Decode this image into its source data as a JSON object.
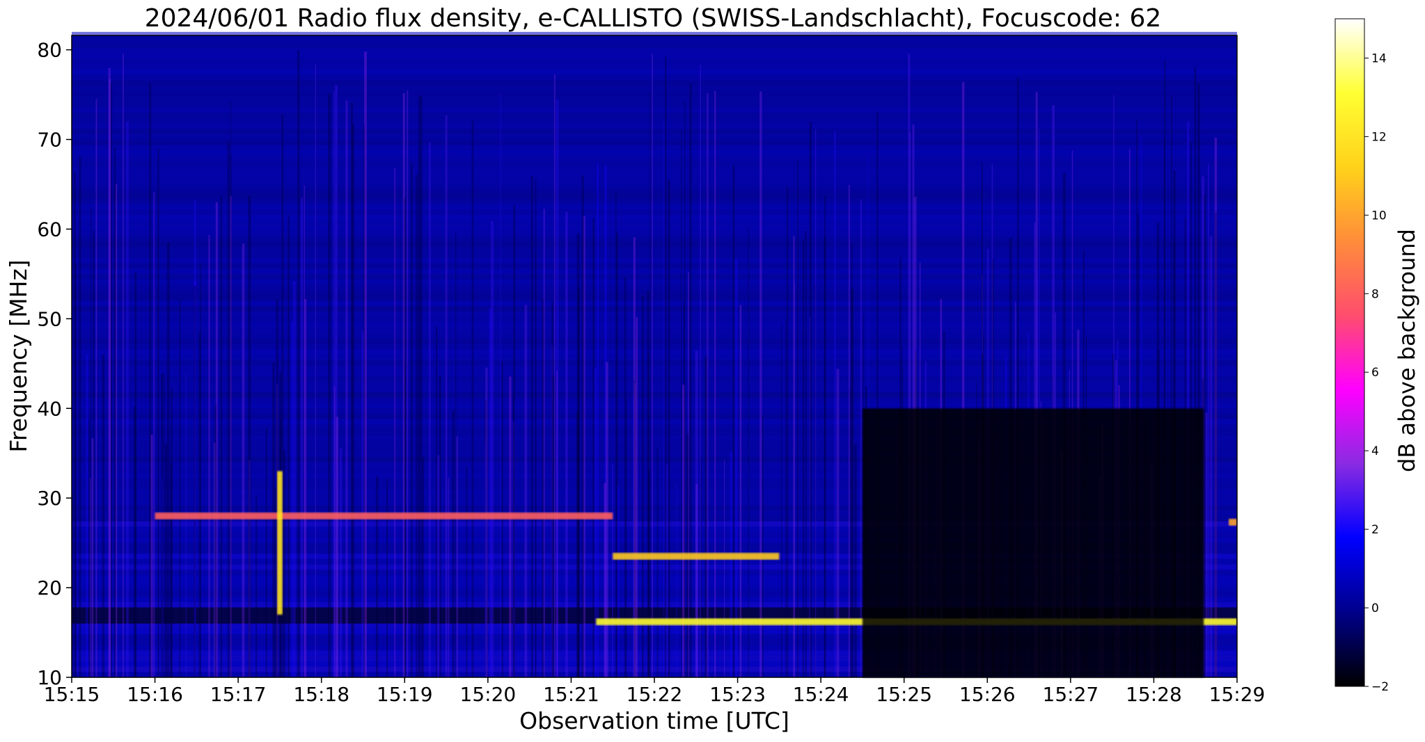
{
  "chart_data": {
    "type": "heatmap",
    "title": "2024/06/01  Radio flux density, e-CALLISTO (SWISS-Landschlacht), Focuscode: 62",
    "xlabel": "Observation time [UTC]",
    "ylabel": "Frequency [MHz]",
    "x_ticks": [
      "15:15",
      "15:16",
      "15:17",
      "15:18",
      "15:19",
      "15:20",
      "15:21",
      "15:22",
      "15:23",
      "15:24",
      "15:25",
      "15:26",
      "15:27",
      "15:28",
      "15:29"
    ],
    "xlim": [
      "15:15",
      "15:29"
    ],
    "y_ticks": [
      10,
      20,
      30,
      40,
      50,
      60,
      70,
      80
    ],
    "ylim": [
      10,
      81.6
    ],
    "colorbar": {
      "label": "dB above background",
      "ticks": [
        -2,
        0,
        2,
        4,
        6,
        8,
        10,
        12,
        14
      ],
      "range": [
        -2,
        15
      ],
      "colormap": [
        "#000000",
        "#00008b",
        "#0000ff",
        "#8a2be2",
        "#ff00ff",
        "#ff4d6d",
        "#ff8c3a",
        "#ffd21a",
        "#ffff33",
        "#ffffff"
      ]
    },
    "grid": false,
    "features": [
      {
        "name": "band",
        "freq_mhz": 16.2,
        "t_start": "15:21.3",
        "t_end": "15:29",
        "level_db": 13
      },
      {
        "name": "band",
        "freq_mhz": 23.5,
        "t_start": "15:21.5",
        "t_end": "15:23.5",
        "level_db": 11
      },
      {
        "name": "band",
        "freq_mhz": 27.3,
        "t_start": "15:28.9",
        "t_end": "15:29",
        "level_db": 10
      },
      {
        "name": "band",
        "freq_mhz": 28,
        "t_start": "15:16",
        "t_end": "15:21.5",
        "level_db": 8
      },
      {
        "name": "spike",
        "time": "15:17.5",
        "f_low": 17,
        "f_high": 33,
        "level_db": 12
      },
      {
        "name": "low-level region",
        "t_start": "15:24.5",
        "t_end": "15:28.6",
        "f_low": 10,
        "f_high": 40,
        "level_db": -2
      }
    ]
  }
}
